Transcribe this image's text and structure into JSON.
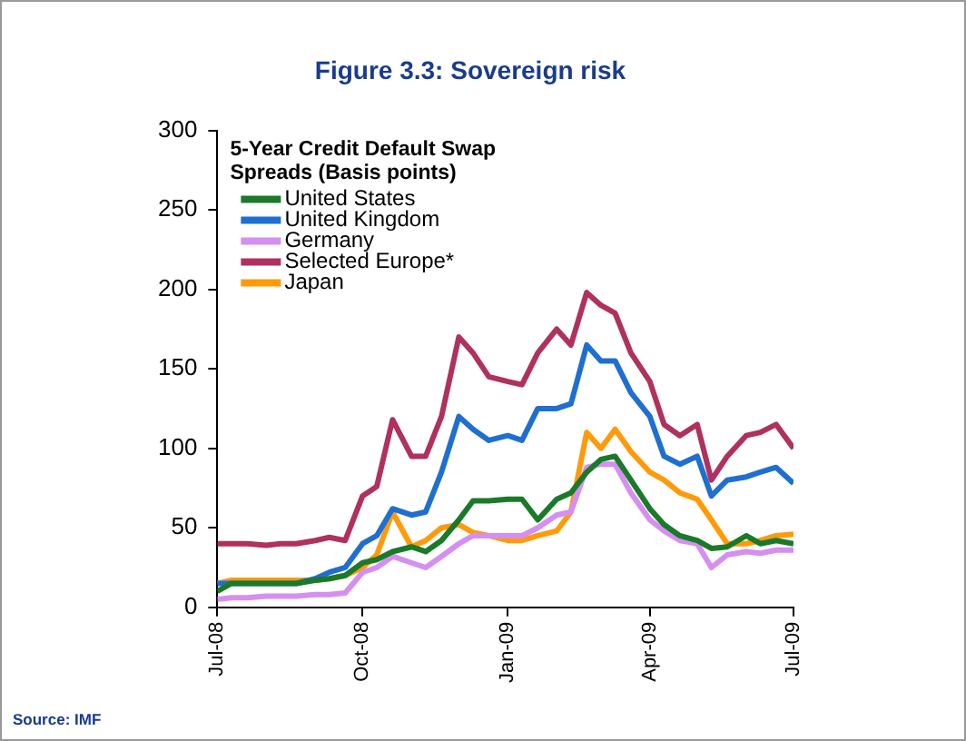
{
  "chart_data": {
    "type": "line",
    "title": "Figure 3.3: Sovereign risk",
    "legend_title": "5-Year Credit Default Swap Spreads (Basis points)",
    "annotations": [
      "Source: IMF"
    ],
    "x": [
      "2008-07-01",
      "2008-07-10",
      "2008-07-20",
      "2008-08-01",
      "2008-08-10",
      "2008-08-20",
      "2008-09-01",
      "2008-09-10",
      "2008-09-20",
      "2008-10-01",
      "2008-10-10",
      "2008-10-20",
      "2008-11-01",
      "2008-11-10",
      "2008-11-20",
      "2008-12-01",
      "2008-12-10",
      "2008-12-20",
      "2009-01-01",
      "2009-01-10",
      "2009-01-20",
      "2009-02-01",
      "2009-02-10",
      "2009-02-20",
      "2009-03-01",
      "2009-03-10",
      "2009-03-20",
      "2009-04-01",
      "2009-04-10",
      "2009-04-20",
      "2009-05-01",
      "2009-05-10",
      "2009-05-20",
      "2009-06-01",
      "2009-06-10",
      "2009-06-20",
      "2009-07-01"
    ],
    "series": [
      {
        "name": "United States",
        "color": "#1a7a2a",
        "values": [
          10,
          15,
          15,
          15,
          15,
          15,
          17,
          18,
          20,
          28,
          30,
          35,
          38,
          35,
          42,
          55,
          67,
          67,
          68,
          68,
          55,
          68,
          72,
          85,
          93,
          95,
          80,
          62,
          52,
          45,
          42,
          37,
          38,
          45,
          40,
          42,
          40
        ]
      },
      {
        "name": "United Kingdom",
        "color": "#1f6fd1",
        "values": [
          15,
          15,
          15,
          15,
          15,
          15,
          18,
          22,
          25,
          40,
          45,
          62,
          58,
          60,
          85,
          120,
          112,
          105,
          108,
          105,
          125,
          125,
          128,
          165,
          155,
          155,
          135,
          120,
          95,
          90,
          95,
          70,
          80,
          82,
          85,
          88,
          78
        ]
      },
      {
        "name": "Germany",
        "color": "#d58ff0",
        "values": [
          5,
          6,
          6,
          7,
          7,
          7,
          8,
          8,
          9,
          22,
          25,
          32,
          28,
          25,
          32,
          40,
          45,
          45,
          45,
          45,
          50,
          58,
          60,
          88,
          90,
          90,
          72,
          55,
          48,
          42,
          40,
          25,
          33,
          35,
          34,
          36,
          36
        ]
      },
      {
        "name": "Selected Europe*",
        "color": "#b0305e",
        "values": [
          40,
          40,
          40,
          39,
          40,
          40,
          42,
          44,
          42,
          70,
          76,
          118,
          95,
          95,
          120,
          170,
          160,
          145,
          142,
          140,
          160,
          175,
          165,
          198,
          190,
          185,
          160,
          142,
          115,
          108,
          115,
          80,
          95,
          108,
          110,
          115,
          100
        ]
      },
      {
        "name": "Japan",
        "color": "#ff9a0a",
        "values": [
          15,
          17,
          17,
          17,
          17,
          17,
          17,
          18,
          20,
          25,
          33,
          60,
          38,
          42,
          50,
          52,
          47,
          45,
          42,
          42,
          45,
          48,
          60,
          110,
          100,
          112,
          98,
          85,
          80,
          72,
          68,
          55,
          40,
          40,
          42,
          45,
          46
        ]
      }
    ],
    "xlim": [
      "2008-07-01",
      "2009-07-01"
    ],
    "xticks": [
      {
        "value": "2008-07-01",
        "label": "Jul-08"
      },
      {
        "value": "2008-10-01",
        "label": "Oct-08"
      },
      {
        "value": "2009-01-01",
        "label": "Jan-09"
      },
      {
        "value": "2009-04-01",
        "label": "Apr-09"
      },
      {
        "value": "2009-07-01",
        "label": "Jul-09"
      }
    ],
    "ylim": [
      0,
      300
    ],
    "yticks": [
      0,
      50,
      100,
      150,
      200,
      250,
      300
    ],
    "grid": false,
    "legend": "top left",
    "marker": "none",
    "line_style": "solid"
  }
}
